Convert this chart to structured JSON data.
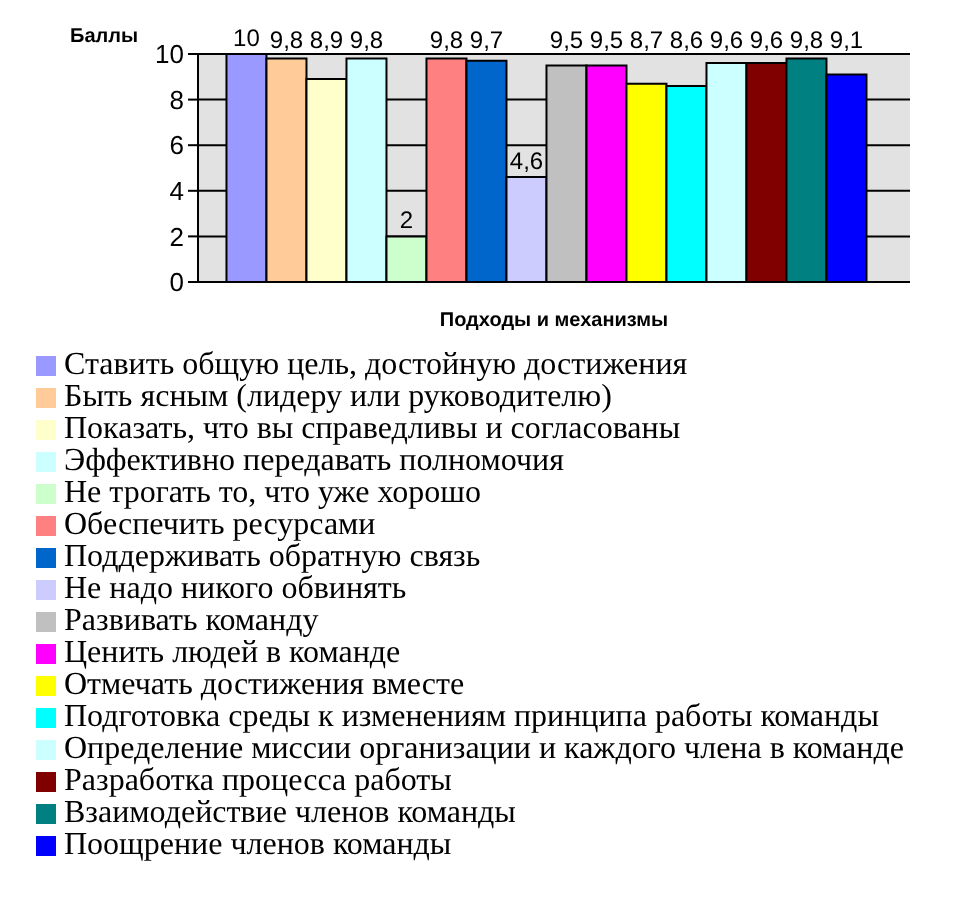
{
  "chart_data": {
    "type": "bar",
    "xlabel": "Подходы и механизмы",
    "ylabel": "Баллы",
    "categories": [
      null
    ],
    "series": [
      {
        "name": "Ставить общую цель, достойную достижения",
        "color": "#9999ff",
        "values": [
          10
        ],
        "value_labels": [
          "10"
        ]
      },
      {
        "name": "Быть ясным (лидеру или руководителю)",
        "color": "#ffcc99",
        "values": [
          9.8
        ],
        "value_labels": [
          "9,8"
        ]
      },
      {
        "name": "Показать, что вы справедливы и согласованы",
        "color": "#ffffcc",
        "values": [
          8.9
        ],
        "value_labels": [
          "8,9"
        ]
      },
      {
        "name": "Эффективно передавать полномочия",
        "color": "#ccffff",
        "values": [
          9.8
        ],
        "value_labels": [
          "9,8"
        ]
      },
      {
        "name": "Не трогать то, что уже хорошо",
        "color": "#ccffcc",
        "values": [
          2
        ],
        "value_labels": [
          "2"
        ]
      },
      {
        "name": "Обеспечить ресурсами",
        "color": "#ff8080",
        "values": [
          9.8
        ],
        "value_labels": [
          "9,8"
        ]
      },
      {
        "name": "Поддерживать обратную связь",
        "color": "#0066cc",
        "values": [
          9.7
        ],
        "value_labels": [
          "9,7"
        ]
      },
      {
        "name": "Не надо никого обвинять",
        "color": "#ccccff",
        "values": [
          4.6
        ],
        "value_labels": [
          "4,6"
        ]
      },
      {
        "name": "Развивать команду",
        "color": "#c0c0c0",
        "values": [
          9.5
        ],
        "value_labels": [
          "9,5"
        ]
      },
      {
        "name": "Ценить людей в команде",
        "color": "#ff00ff",
        "values": [
          9.5
        ],
        "value_labels": [
          "9,5"
        ]
      },
      {
        "name": "Отмечать достижения вместе",
        "color": "#ffff00",
        "values": [
          8.7
        ],
        "value_labels": [
          "8,7"
        ]
      },
      {
        "name": "Подготовка среды к изменениям принципа работы команды",
        "color": "#00ffff",
        "values": [
          8.6
        ],
        "value_labels": [
          "8,6"
        ]
      },
      {
        "name": "Определение миссии организации и каждого члена в команде",
        "color": "#ccffff",
        "values": [
          9.6
        ],
        "value_labels": [
          "9,6"
        ]
      },
      {
        "name": "Разработка процесса работы",
        "color": "#800000",
        "values": [
          9.6
        ],
        "value_labels": [
          "9,6"
        ]
      },
      {
        "name": "Взаимодействие членов команды",
        "color": "#008080",
        "values": [
          9.8
        ],
        "value_labels": [
          "9,8"
        ]
      },
      {
        "name": "Поощрение членов команды",
        "color": "#0000ff",
        "values": [
          9.1
        ],
        "value_labels": [
          "9,1"
        ]
      }
    ],
    "ylim": [
      0,
      10
    ],
    "yticks": [
      0,
      2,
      4,
      6,
      8,
      10
    ],
    "grid": "y",
    "legend": "bottom"
  }
}
